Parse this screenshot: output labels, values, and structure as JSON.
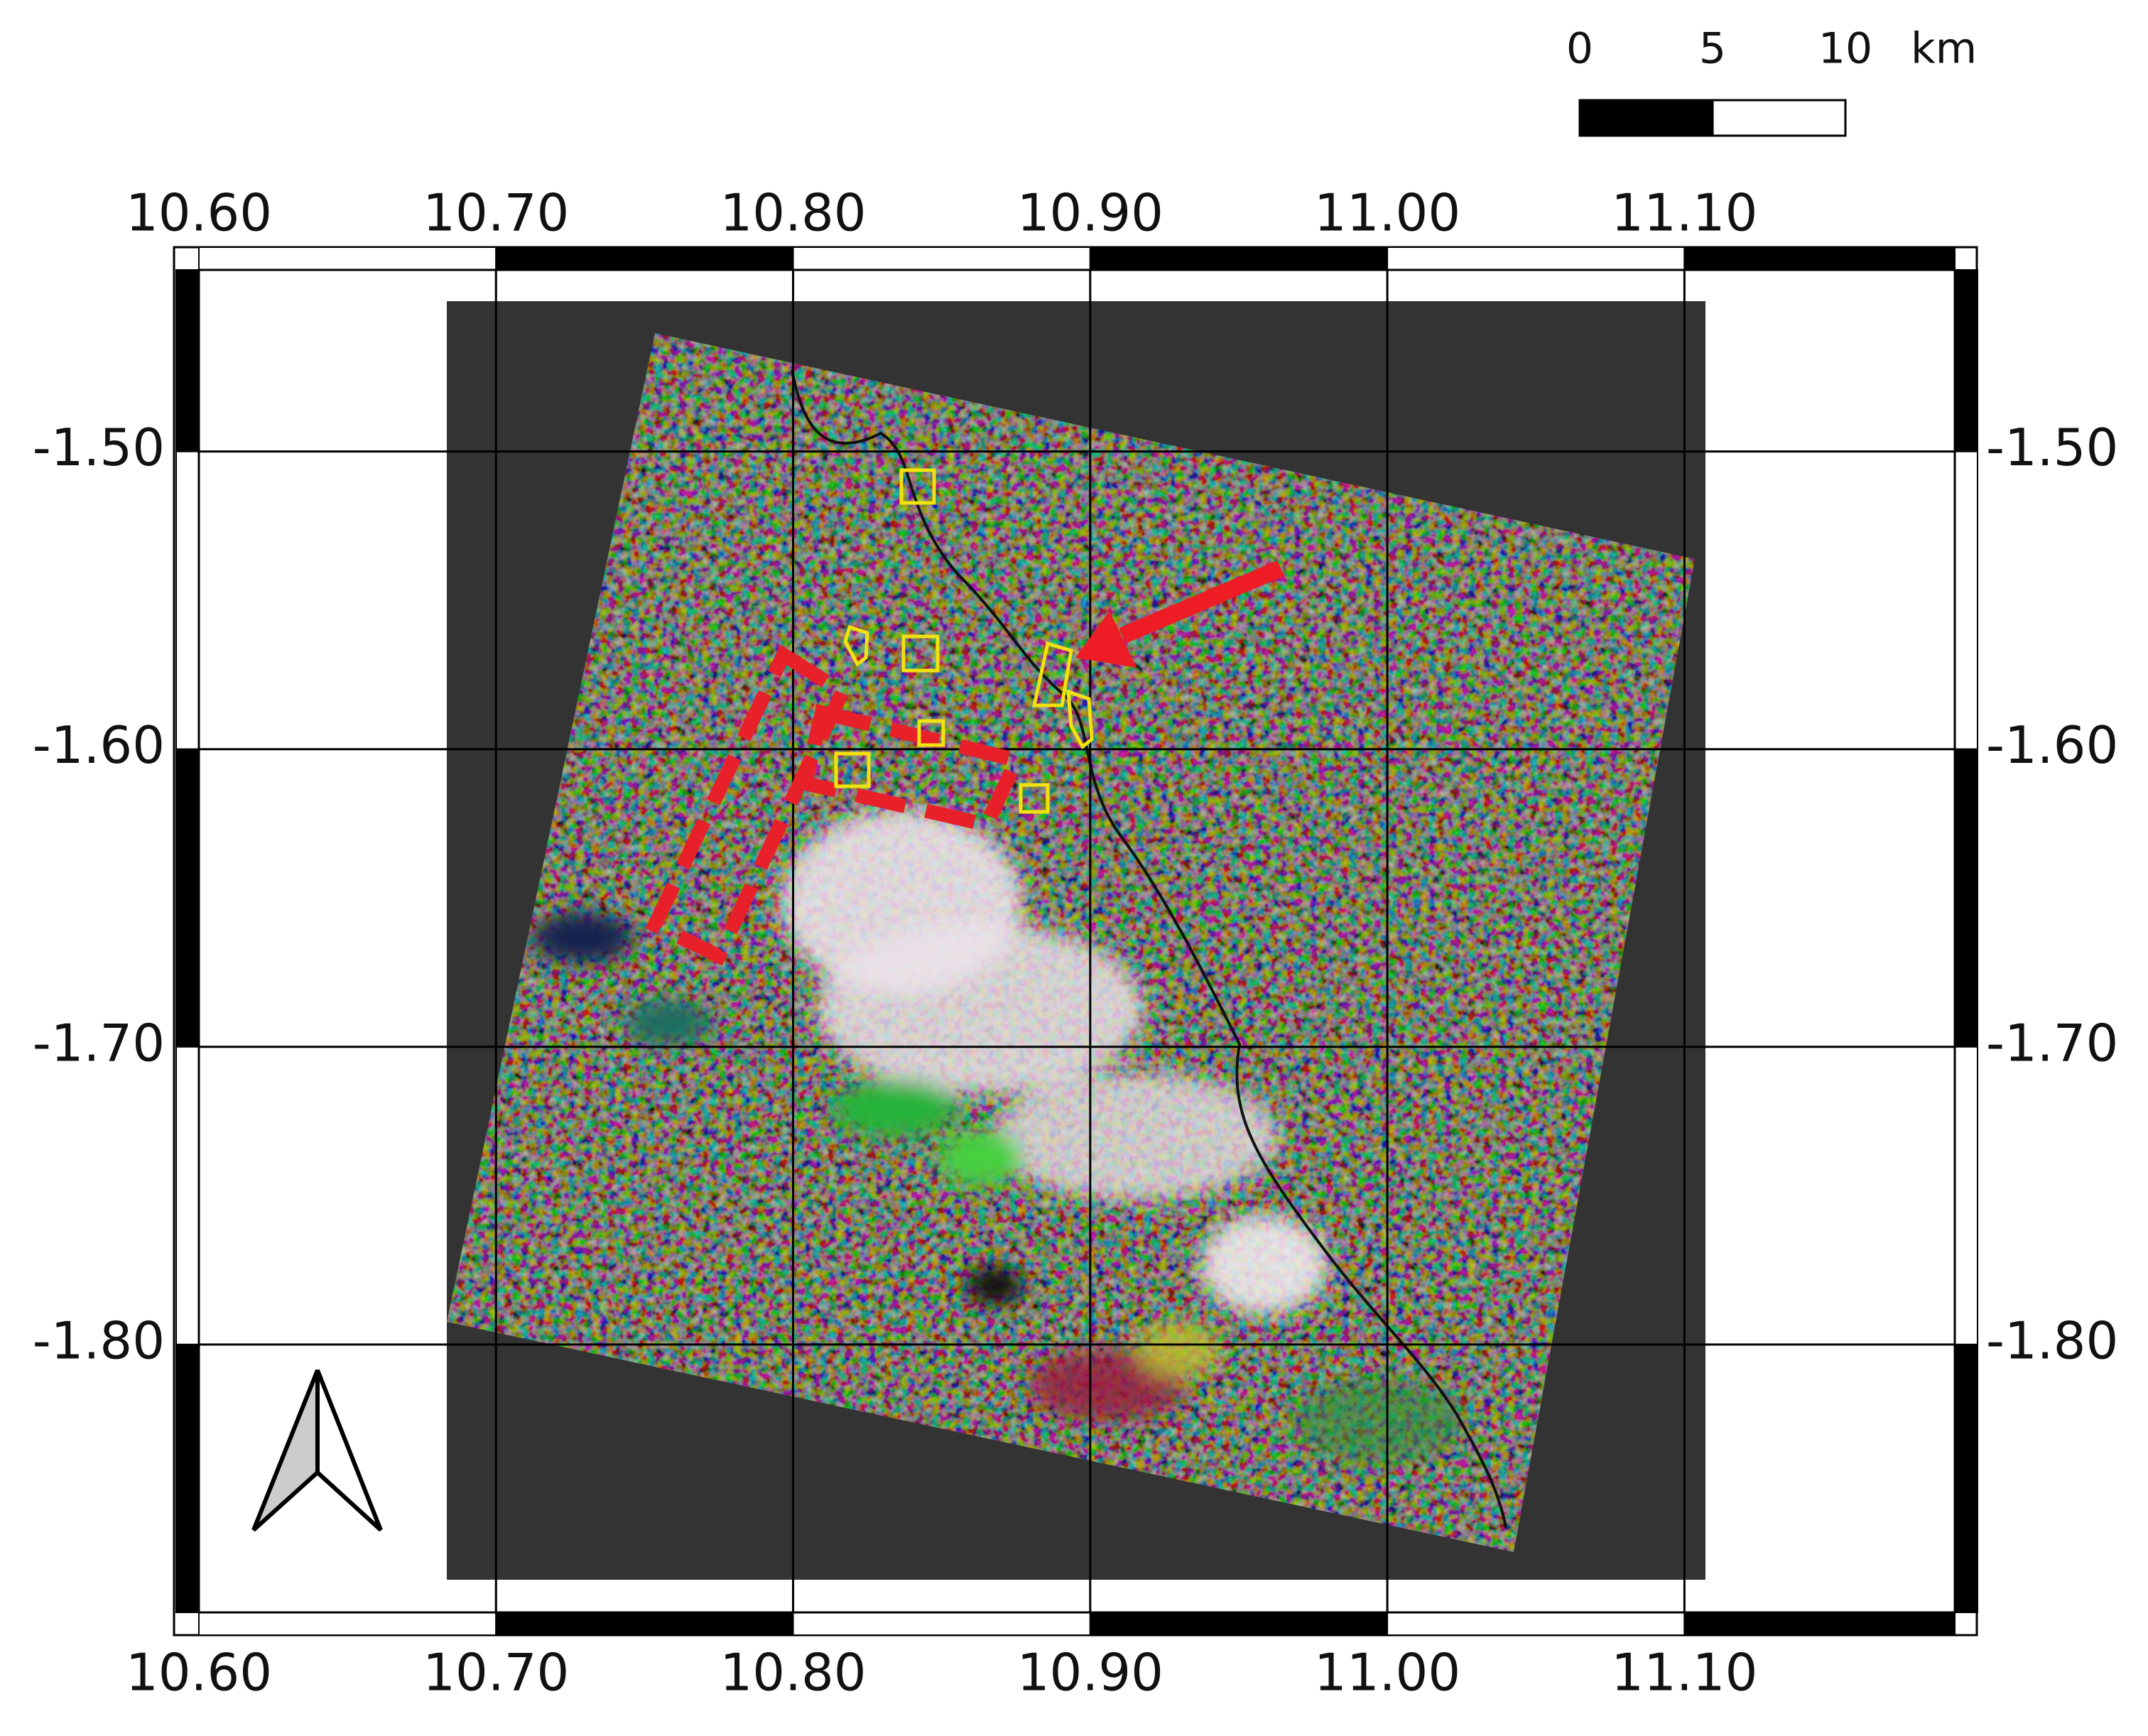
{
  "map": {
    "lonlim": [
      10.6,
      11.191
    ],
    "latlim": [
      -1.89,
      -1.439
    ],
    "lon_ticks": [
      {
        "value": 10.6,
        "label": "10.60"
      },
      {
        "value": 10.7,
        "label": "10.70"
      },
      {
        "value": 10.8,
        "label": "10.80"
      },
      {
        "value": 10.9,
        "label": "10.90"
      },
      {
        "value": 11.0,
        "label": "11.00"
      },
      {
        "value": 11.1,
        "label": "11.10"
      }
    ],
    "lat_ticks": [
      {
        "value": -1.5,
        "label": "-1.50"
      },
      {
        "value": -1.6,
        "label": "-1.60"
      },
      {
        "value": -1.7,
        "label": "-1.70"
      },
      {
        "value": -1.8,
        "label": "-1.80"
      }
    ],
    "scale_bar": {
      "ticks": [
        0,
        5,
        10
      ],
      "unit": "km"
    }
  }
}
